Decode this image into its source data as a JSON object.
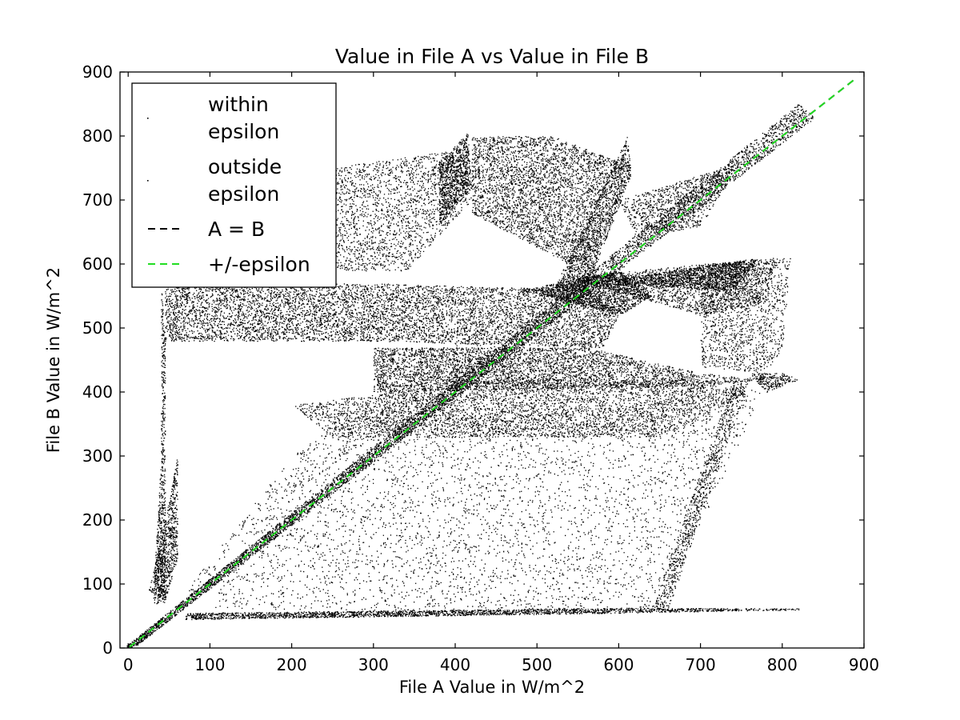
{
  "chart_data": {
    "type": "scatter",
    "title": "Value in File A vs Value in File B",
    "xlabel": "File A Value in W/m^2",
    "ylabel": "File B Value in W/m^2",
    "xlim": [
      -10,
      900
    ],
    "ylim": [
      0,
      900
    ],
    "x_ticks": [
      "0",
      "100",
      "200",
      "300",
      "400",
      "500",
      "600",
      "700",
      "800",
      "900"
    ],
    "y_ticks": [
      "0",
      "100",
      "200",
      "300",
      "400",
      "500",
      "600",
      "700",
      "800",
      "900"
    ],
    "grid": false,
    "legend_position": "top-left",
    "legend": [
      {
        "lines": [
          "within",
          "epsilon"
        ],
        "marker": "point",
        "color": "#000000"
      },
      {
        "lines": [
          "outside",
          "epsilon"
        ],
        "marker": "point",
        "color": "#000000"
      },
      {
        "lines": [
          "A = B"
        ],
        "marker": "dashed-line",
        "color": "#000000"
      },
      {
        "lines": [
          "+/-epsilon"
        ],
        "marker": "dashed-line",
        "color": "#22dd22"
      }
    ],
    "series": [
      {
        "name": "within epsilon",
        "kind": "points",
        "color": "#000000"
      },
      {
        "name": "outside epsilon",
        "kind": "points",
        "color": "#000000"
      },
      {
        "name": "A = B",
        "kind": "line",
        "color": "#000000",
        "x": [
          -10,
          890
        ],
        "y": [
          -10,
          890
        ]
      },
      {
        "name": "+/-epsilon",
        "kind": "line",
        "color": "#22dd22",
        "x": [
          -10,
          890
        ],
        "y": [
          -10,
          890
        ]
      }
    ],
    "point_density_regions": [
      {
        "polygon": [
          [
            45,
            580
          ],
          [
            110,
            570
          ],
          [
            300,
            570
          ],
          [
            560,
            560
          ],
          [
            600,
            520
          ],
          [
            580,
            470
          ],
          [
            300,
            480
          ],
          [
            45,
            480
          ]
        ],
        "density": 1.0
      },
      {
        "polygon": [
          [
            40,
            580
          ],
          [
            45,
            480
          ],
          [
            45,
            70
          ],
          [
            30,
            70
          ],
          [
            40,
            300
          ]
        ],
        "density": 0.55
      },
      {
        "polygon": [
          [
            60,
            720
          ],
          [
            140,
            730
          ],
          [
            300,
            760
          ],
          [
            410,
            780
          ],
          [
            420,
            700
          ],
          [
            340,
            590
          ],
          [
            60,
            590
          ]
        ],
        "density": 0.55
      },
      {
        "polygon": [
          [
            380,
            760
          ],
          [
            415,
            805
          ],
          [
            420,
            720
          ],
          [
            380,
            660
          ]
        ],
        "density": 0.7
      },
      {
        "polygon": [
          [
            520,
            560
          ],
          [
            610,
            800
          ],
          [
            615,
            740
          ],
          [
            560,
            560
          ]
        ],
        "density": 0.7
      },
      {
        "polygon": [
          [
            420,
            800
          ],
          [
            520,
            800
          ],
          [
            600,
            760
          ],
          [
            540,
            600
          ],
          [
            420,
            680
          ]
        ],
        "density": 0.35
      },
      {
        "polygon": [
          [
            480,
            560
          ],
          [
            600,
            590
          ],
          [
            640,
            550
          ],
          [
            600,
            520
          ]
        ],
        "density": 0.8
      },
      {
        "polygon": [
          [
            540,
            580
          ],
          [
            700,
            600
          ],
          [
            790,
            610
          ],
          [
            780,
            540
          ],
          [
            700,
            520
          ]
        ],
        "density": 0.35
      },
      {
        "polygon": [
          [
            560,
            570
          ],
          [
            770,
            610
          ],
          [
            740,
            560
          ]
        ],
        "density": 0.8
      },
      {
        "polygon": [
          [
            300,
            470
          ],
          [
            560,
            470
          ],
          [
            700,
            430
          ],
          [
            780,
            420
          ],
          [
            700,
            410
          ],
          [
            300,
            400
          ]
        ],
        "density": 0.85
      },
      {
        "polygon": [
          [
            70,
            60
          ],
          [
            70,
            90
          ],
          [
            200,
            300
          ],
          [
            400,
            480
          ],
          [
            500,
            470
          ],
          [
            300,
            330
          ],
          [
            150,
            200
          ]
        ],
        "density": 0.95
      },
      {
        "polygon": [
          [
            200,
            380
          ],
          [
            450,
            420
          ],
          [
            700,
            420
          ],
          [
            760,
            400
          ],
          [
            650,
            330
          ],
          [
            250,
            330
          ]
        ],
        "density": 0.6
      },
      {
        "polygon": [
          [
            100,
            60
          ],
          [
            600,
            60
          ],
          [
            650,
            60
          ],
          [
            780,
            410
          ],
          [
            700,
            400
          ],
          [
            620,
            380
          ],
          [
            300,
            360
          ],
          [
            150,
            200
          ]
        ],
        "density": 0.6
      },
      {
        "polygon": [
          [
            640,
            60
          ],
          [
            660,
            60
          ],
          [
            760,
            420
          ],
          [
            740,
            420
          ]
        ],
        "density": 0.85
      },
      {
        "polygon": [
          [
            70,
            45
          ],
          [
            600,
            55
          ],
          [
            820,
            60
          ],
          [
            820,
            62
          ],
          [
            600,
            63
          ],
          [
            70,
            55
          ]
        ],
        "density": 1.0
      },
      {
        "polygon": [
          [
            25,
            90
          ],
          [
            45,
            200
          ],
          [
            60,
            300
          ],
          [
            60,
            140
          ],
          [
            45,
            75
          ]
        ],
        "density": 0.6
      },
      {
        "polygon": [
          [
            700,
            600
          ],
          [
            810,
            610
          ],
          [
            800,
            470
          ],
          [
            780,
            430
          ],
          [
            700,
            440
          ]
        ],
        "density": 0.2
      },
      {
        "polygon": [
          [
            760,
            430
          ],
          [
            800,
            430
          ],
          [
            820,
            420
          ],
          [
            780,
            400
          ]
        ],
        "density": 0.6
      },
      {
        "polygon": [
          [
            600,
            700
          ],
          [
            750,
            760
          ],
          [
            700,
            660
          ],
          [
            620,
            640
          ]
        ],
        "density": 0.3
      }
    ],
    "diagonal_band": {
      "from": [
        0,
        0
      ],
      "to": [
        830,
        840
      ],
      "half_width": 15,
      "density": 1.0
    }
  }
}
